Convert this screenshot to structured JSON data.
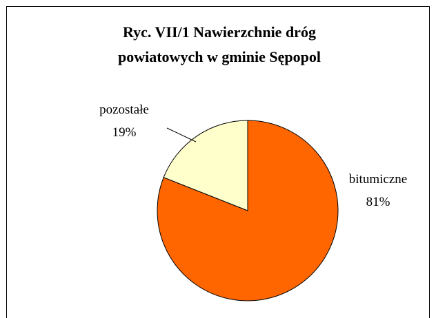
{
  "chart_data": {
    "type": "pie",
    "title": [
      "Ryc. VII/1 Nawierzchnie dróg",
      "powiatowych w gminie Sępopol"
    ],
    "categories": [
      "bitumiczne",
      "pozostałe"
    ],
    "values": [
      81,
      19
    ],
    "value_labels": [
      "81%",
      "19%"
    ],
    "colors": [
      "#FF6600",
      "#FFFFCC"
    ]
  }
}
